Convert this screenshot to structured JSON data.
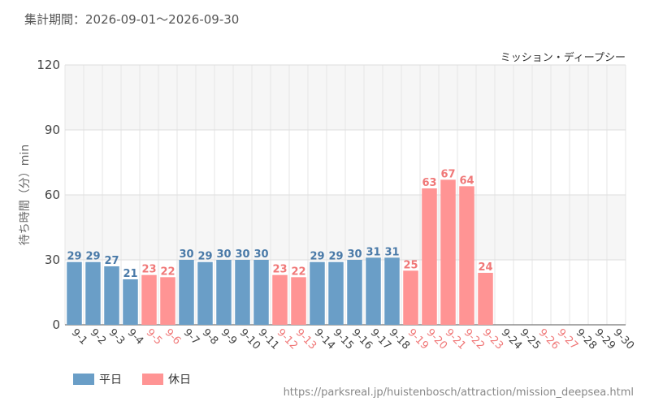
{
  "header": {
    "period_label": "集計期間：2026-09-01～2026-09-30"
  },
  "source_url": "https://parksreal.jp/huistenbosch/attraction/mission_deepsea.html",
  "chart_data": {
    "type": "bar",
    "subtitle": "ミッション・ディープシー",
    "ylabel": "待ち時間（分）min",
    "ylim": [
      0,
      120
    ],
    "yticks": [
      0,
      30,
      60,
      90,
      120
    ],
    "grid": true,
    "legend_placement": "bottom-left",
    "categories": [
      "9-1",
      "9-2",
      "9-3",
      "9-4",
      "9-5",
      "9-6",
      "9-7",
      "9-8",
      "9-9",
      "9-10",
      "9-11",
      "9-12",
      "9-13",
      "9-14",
      "9-15",
      "9-16",
      "9-17",
      "9-18",
      "9-19",
      "9-20",
      "9-21",
      "9-22",
      "9-23",
      "9-24",
      "9-25",
      "9-26",
      "9-27",
      "9-28",
      "9-29",
      "9-30"
    ],
    "values": [
      29,
      29,
      27,
      21,
      23,
      22,
      30,
      29,
      30,
      30,
      30,
      23,
      22,
      29,
      29,
      30,
      31,
      31,
      25,
      63,
      67,
      64,
      24,
      null,
      null,
      null,
      null,
      null,
      null,
      null
    ],
    "day_type": [
      "weekday",
      "weekday",
      "weekday",
      "weekday",
      "holiday",
      "holiday",
      "weekday",
      "weekday",
      "weekday",
      "weekday",
      "weekday",
      "holiday",
      "holiday",
      "weekday",
      "weekday",
      "weekday",
      "weekday",
      "weekday",
      "holiday",
      "holiday",
      "holiday",
      "holiday",
      "holiday",
      "weekday",
      "weekday",
      "holiday",
      "holiday",
      "weekday",
      "weekday",
      "weekday"
    ],
    "legend": [
      {
        "key": "weekday",
        "label": "平日",
        "color": "#6a9ec7",
        "label_color": "#4a7aa8",
        "tick_color": "#444444"
      },
      {
        "key": "holiday",
        "label": "休日",
        "color": "#ff9494",
        "label_color": "#f07878",
        "tick_color": "#f07878"
      }
    ]
  }
}
